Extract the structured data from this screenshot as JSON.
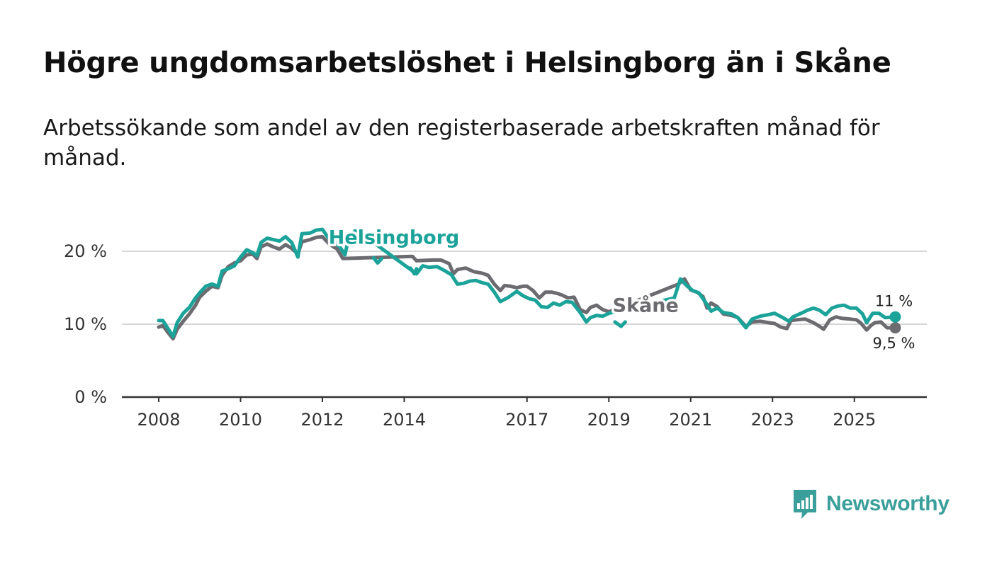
{
  "header": {
    "title": "Högre ungdomsarbetslöshet i Helsingborg än i Skåne",
    "subtitle": "Arbetssökande som andel av den registerbaserade arbetskraften månad för månad."
  },
  "brand": {
    "name": "Newsworthy",
    "icon": "newsworthy-logo-icon",
    "color": "#3a9f9a"
  },
  "chart_data": {
    "type": "line",
    "title": "Högre ungdomsarbetslöshet i Helsingborg än i Skåne",
    "subtitle": "Arbetssökande som andel av den registerbaserade arbetskraften månad för månad.",
    "xlabel": "",
    "ylabel": "",
    "xlim": [
      2008,
      2026.5
    ],
    "ylim": [
      0,
      25
    ],
    "grid": true,
    "legend": "inline labels",
    "x_ticks": [
      {
        "value": 2008,
        "label": "2008"
      },
      {
        "value": 2010,
        "label": "2010"
      },
      {
        "value": 2012,
        "label": "2012"
      },
      {
        "value": 2014,
        "label": "2014"
      },
      {
        "value": 2017,
        "label": "2017"
      },
      {
        "value": 2019,
        "label": "2019"
      },
      {
        "value": 2021,
        "label": "2021"
      },
      {
        "value": 2023,
        "label": "2023"
      },
      {
        "value": 2025,
        "label": "2025"
      }
    ],
    "y_ticks": [
      {
        "value": 0,
        "label": "0 %"
      },
      {
        "value": 10,
        "label": "10 %"
      },
      {
        "value": 20,
        "label": "20 %"
      }
    ],
    "series": [
      {
        "name": "Skåne",
        "color": "#6b6b70",
        "end_label": "9,5 %",
        "points": [
          [
            2008.0,
            9.6
          ],
          [
            2008.1,
            9.8
          ],
          [
            2008.25,
            8.7
          ],
          [
            2008.35,
            8.0
          ],
          [
            2008.45,
            9.3
          ],
          [
            2008.6,
            10.4
          ],
          [
            2008.75,
            11.4
          ],
          [
            2008.9,
            12.6
          ],
          [
            2009.0,
            13.7
          ],
          [
            2009.15,
            14.5
          ],
          [
            2009.3,
            15.2
          ],
          [
            2009.45,
            15.0
          ],
          [
            2009.55,
            16.7
          ],
          [
            2009.7,
            17.9
          ],
          [
            2009.85,
            18.4
          ],
          [
            2010.0,
            18.7
          ],
          [
            2010.15,
            19.5
          ],
          [
            2010.3,
            19.6
          ],
          [
            2010.4,
            19.0
          ],
          [
            2010.5,
            20.6
          ],
          [
            2010.65,
            21.0
          ],
          [
            2010.8,
            20.6
          ],
          [
            2010.95,
            20.3
          ],
          [
            2011.1,
            20.9
          ],
          [
            2011.25,
            20.4
          ],
          [
            2011.4,
            19.6
          ],
          [
            2011.5,
            21.3
          ],
          [
            2011.7,
            21.6
          ],
          [
            2011.85,
            21.9
          ],
          [
            2012.0,
            22.0
          ],
          [
            2012.15,
            21.1
          ],
          [
            2012.3,
            20.5
          ],
          [
            2012.35,
            20.4
          ],
          [
            2012.5,
            19.0
          ],
          [
            2014.2,
            19.3
          ],
          [
            2014.3,
            18.7
          ],
          [
            2014.7,
            18.8
          ],
          [
            2014.9,
            18.8
          ],
          [
            2015.1,
            18.3
          ],
          [
            2015.2,
            16.9
          ],
          [
            2015.3,
            17.5
          ],
          [
            2015.5,
            17.7
          ],
          [
            2015.7,
            17.2
          ],
          [
            2015.9,
            17.0
          ],
          [
            2016.05,
            16.7
          ],
          [
            2016.2,
            15.5
          ],
          [
            2016.35,
            14.6
          ],
          [
            2016.45,
            15.3
          ],
          [
            2016.6,
            15.2
          ],
          [
            2016.75,
            15.0
          ],
          [
            2016.9,
            15.2
          ],
          [
            2017.0,
            15.2
          ],
          [
            2017.15,
            14.6
          ],
          [
            2017.3,
            13.6
          ],
          [
            2017.45,
            14.4
          ],
          [
            2017.6,
            14.4
          ],
          [
            2017.75,
            14.2
          ],
          [
            2017.85,
            14.0
          ],
          [
            2018.0,
            13.6
          ],
          [
            2018.15,
            13.7
          ],
          [
            2018.3,
            12.0
          ],
          [
            2018.45,
            11.6
          ],
          [
            2018.55,
            12.3
          ],
          [
            2018.7,
            12.6
          ],
          [
            2018.85,
            12.0
          ],
          [
            2019.0,
            11.7
          ],
          [
            2020.7,
            15.5
          ],
          [
            2020.85,
            16.2
          ],
          [
            2021.0,
            14.7
          ],
          [
            2021.15,
            14.4
          ],
          [
            2021.3,
            13.8
          ],
          [
            2021.4,
            12.2
          ],
          [
            2021.5,
            12.9
          ],
          [
            2021.65,
            12.4
          ],
          [
            2021.8,
            11.4
          ],
          [
            2022.0,
            11.2
          ],
          [
            2022.15,
            10.9
          ],
          [
            2022.35,
            9.7
          ],
          [
            2022.5,
            10.3
          ],
          [
            2022.7,
            10.4
          ],
          [
            2022.9,
            10.2
          ],
          [
            2023.05,
            10.1
          ],
          [
            2023.2,
            9.6
          ],
          [
            2023.35,
            9.4
          ],
          [
            2023.45,
            10.5
          ],
          [
            2023.6,
            10.6
          ],
          [
            2023.8,
            10.7
          ],
          [
            2024.0,
            10.2
          ],
          [
            2024.15,
            9.7
          ],
          [
            2024.25,
            9.3
          ],
          [
            2024.4,
            10.6
          ],
          [
            2024.55,
            11.0
          ],
          [
            2024.7,
            10.8
          ],
          [
            2024.9,
            10.7
          ],
          [
            2025.05,
            10.6
          ],
          [
            2025.15,
            10.2
          ],
          [
            2025.3,
            9.2
          ],
          [
            2025.4,
            9.8
          ],
          [
            2025.5,
            10.2
          ],
          [
            2025.65,
            10.3
          ],
          [
            2025.8,
            9.5
          ],
          [
            2026.0,
            9.5
          ]
        ]
      },
      {
        "name": "Helsingborg",
        "color": "#1ba39a",
        "end_label": "11 %",
        "points": [
          [
            2008.0,
            10.5
          ],
          [
            2008.1,
            10.5
          ],
          [
            2008.25,
            9.2
          ],
          [
            2008.35,
            8.3
          ],
          [
            2008.45,
            10.2
          ],
          [
            2008.6,
            11.5
          ],
          [
            2008.75,
            12.3
          ],
          [
            2008.9,
            13.6
          ],
          [
            2009.0,
            14.3
          ],
          [
            2009.15,
            15.2
          ],
          [
            2009.3,
            15.5
          ],
          [
            2009.45,
            15.2
          ],
          [
            2009.55,
            17.3
          ],
          [
            2009.7,
            17.6
          ],
          [
            2009.85,
            18.0
          ],
          [
            2010.0,
            19.2
          ],
          [
            2010.15,
            20.2
          ],
          [
            2010.3,
            19.8
          ],
          [
            2010.4,
            19.4
          ],
          [
            2010.5,
            21.2
          ],
          [
            2010.65,
            21.8
          ],
          [
            2010.8,
            21.6
          ],
          [
            2010.95,
            21.4
          ],
          [
            2011.1,
            22.0
          ],
          [
            2011.25,
            21.2
          ],
          [
            2011.4,
            19.2
          ],
          [
            2011.5,
            22.4
          ],
          [
            2011.7,
            22.5
          ],
          [
            2011.85,
            22.9
          ],
          [
            2012.0,
            23.0
          ],
          [
            2012.15,
            21.8
          ],
          [
            2012.3,
            21.4
          ],
          [
            2012.45,
            20.4
          ],
          [
            2012.55,
            19.5
          ],
          [
            2012.65,
            22.0
          ],
          [
            2012.8,
            22.8
          ],
          [
            2012.95,
            22.4
          ],
          [
            2013.15,
            21.6
          ],
          [
            2014.3,
            16.9
          ],
          [
            2014.45,
            18.0
          ],
          [
            2014.6,
            17.8
          ],
          [
            2014.8,
            17.9
          ],
          [
            2015.0,
            17.3
          ],
          [
            2015.15,
            16.8
          ],
          [
            2015.3,
            15.5
          ],
          [
            2015.45,
            15.6
          ],
          [
            2015.6,
            15.9
          ],
          [
            2015.75,
            16.0
          ],
          [
            2015.9,
            15.7
          ],
          [
            2016.05,
            15.5
          ],
          [
            2016.2,
            14.4
          ],
          [
            2016.35,
            13.1
          ],
          [
            2016.55,
            13.7
          ],
          [
            2016.75,
            14.5
          ],
          [
            2016.9,
            13.9
          ],
          [
            2017.05,
            13.5
          ],
          [
            2017.2,
            13.3
          ],
          [
            2017.35,
            12.4
          ],
          [
            2017.5,
            12.3
          ],
          [
            2017.65,
            12.9
          ],
          [
            2017.8,
            12.6
          ],
          [
            2017.95,
            13.1
          ],
          [
            2018.1,
            13.0
          ],
          [
            2018.3,
            11.6
          ],
          [
            2018.45,
            10.3
          ],
          [
            2018.55,
            10.9
          ],
          [
            2018.7,
            11.2
          ],
          [
            2018.85,
            11.1
          ],
          [
            2019.0,
            11.5
          ],
          [
            2020.6,
            13.6
          ],
          [
            2020.75,
            16.2
          ],
          [
            2020.9,
            15.3
          ],
          [
            2021.05,
            14.6
          ],
          [
            2021.2,
            14.3
          ],
          [
            2021.35,
            13.1
          ],
          [
            2021.5,
            11.8
          ],
          [
            2021.65,
            12.2
          ],
          [
            2021.8,
            11.6
          ],
          [
            2022.0,
            11.4
          ],
          [
            2022.15,
            10.9
          ],
          [
            2022.35,
            9.5
          ],
          [
            2022.5,
            10.7
          ],
          [
            2022.7,
            11.1
          ],
          [
            2022.9,
            11.3
          ],
          [
            2023.05,
            11.5
          ],
          [
            2023.25,
            10.9
          ],
          [
            2023.4,
            10.4
          ],
          [
            2023.5,
            11.0
          ],
          [
            2023.7,
            11.5
          ],
          [
            2023.85,
            11.9
          ],
          [
            2024.0,
            12.2
          ],
          [
            2024.15,
            11.9
          ],
          [
            2024.3,
            11.3
          ],
          [
            2024.45,
            12.2
          ],
          [
            2024.6,
            12.5
          ],
          [
            2024.75,
            12.6
          ],
          [
            2024.9,
            12.2
          ],
          [
            2025.05,
            12.2
          ],
          [
            2025.2,
            11.4
          ],
          [
            2025.3,
            10.2
          ],
          [
            2025.45,
            11.5
          ],
          [
            2025.6,
            11.5
          ],
          [
            2025.75,
            10.9
          ],
          [
            2026.0,
            11.0
          ]
        ]
      }
    ],
    "fragments": [
      {
        "series": "Helsingborg",
        "points": [
          [
            2013.25,
            19.1
          ],
          [
            2013.35,
            18.4
          ],
          [
            2013.45,
            19.0
          ]
        ]
      },
      {
        "series": "Helsingborg",
        "points": [
          [
            2014.15,
            17.7
          ],
          [
            2014.25,
            16.9
          ],
          [
            2014.3,
            17.6
          ]
        ]
      },
      {
        "series": "Helsingborg",
        "points": [
          [
            2019.15,
            10.3
          ],
          [
            2019.3,
            9.7
          ],
          [
            2019.4,
            10.3
          ]
        ]
      }
    ],
    "annotations": [
      {
        "series": "Helsingborg",
        "text": "Helsingborg",
        "x": 2013.75,
        "y": 21.0
      },
      {
        "series": "Skåne",
        "text": "Skåne",
        "x": 2019.9,
        "y": 11.7
      }
    ]
  }
}
